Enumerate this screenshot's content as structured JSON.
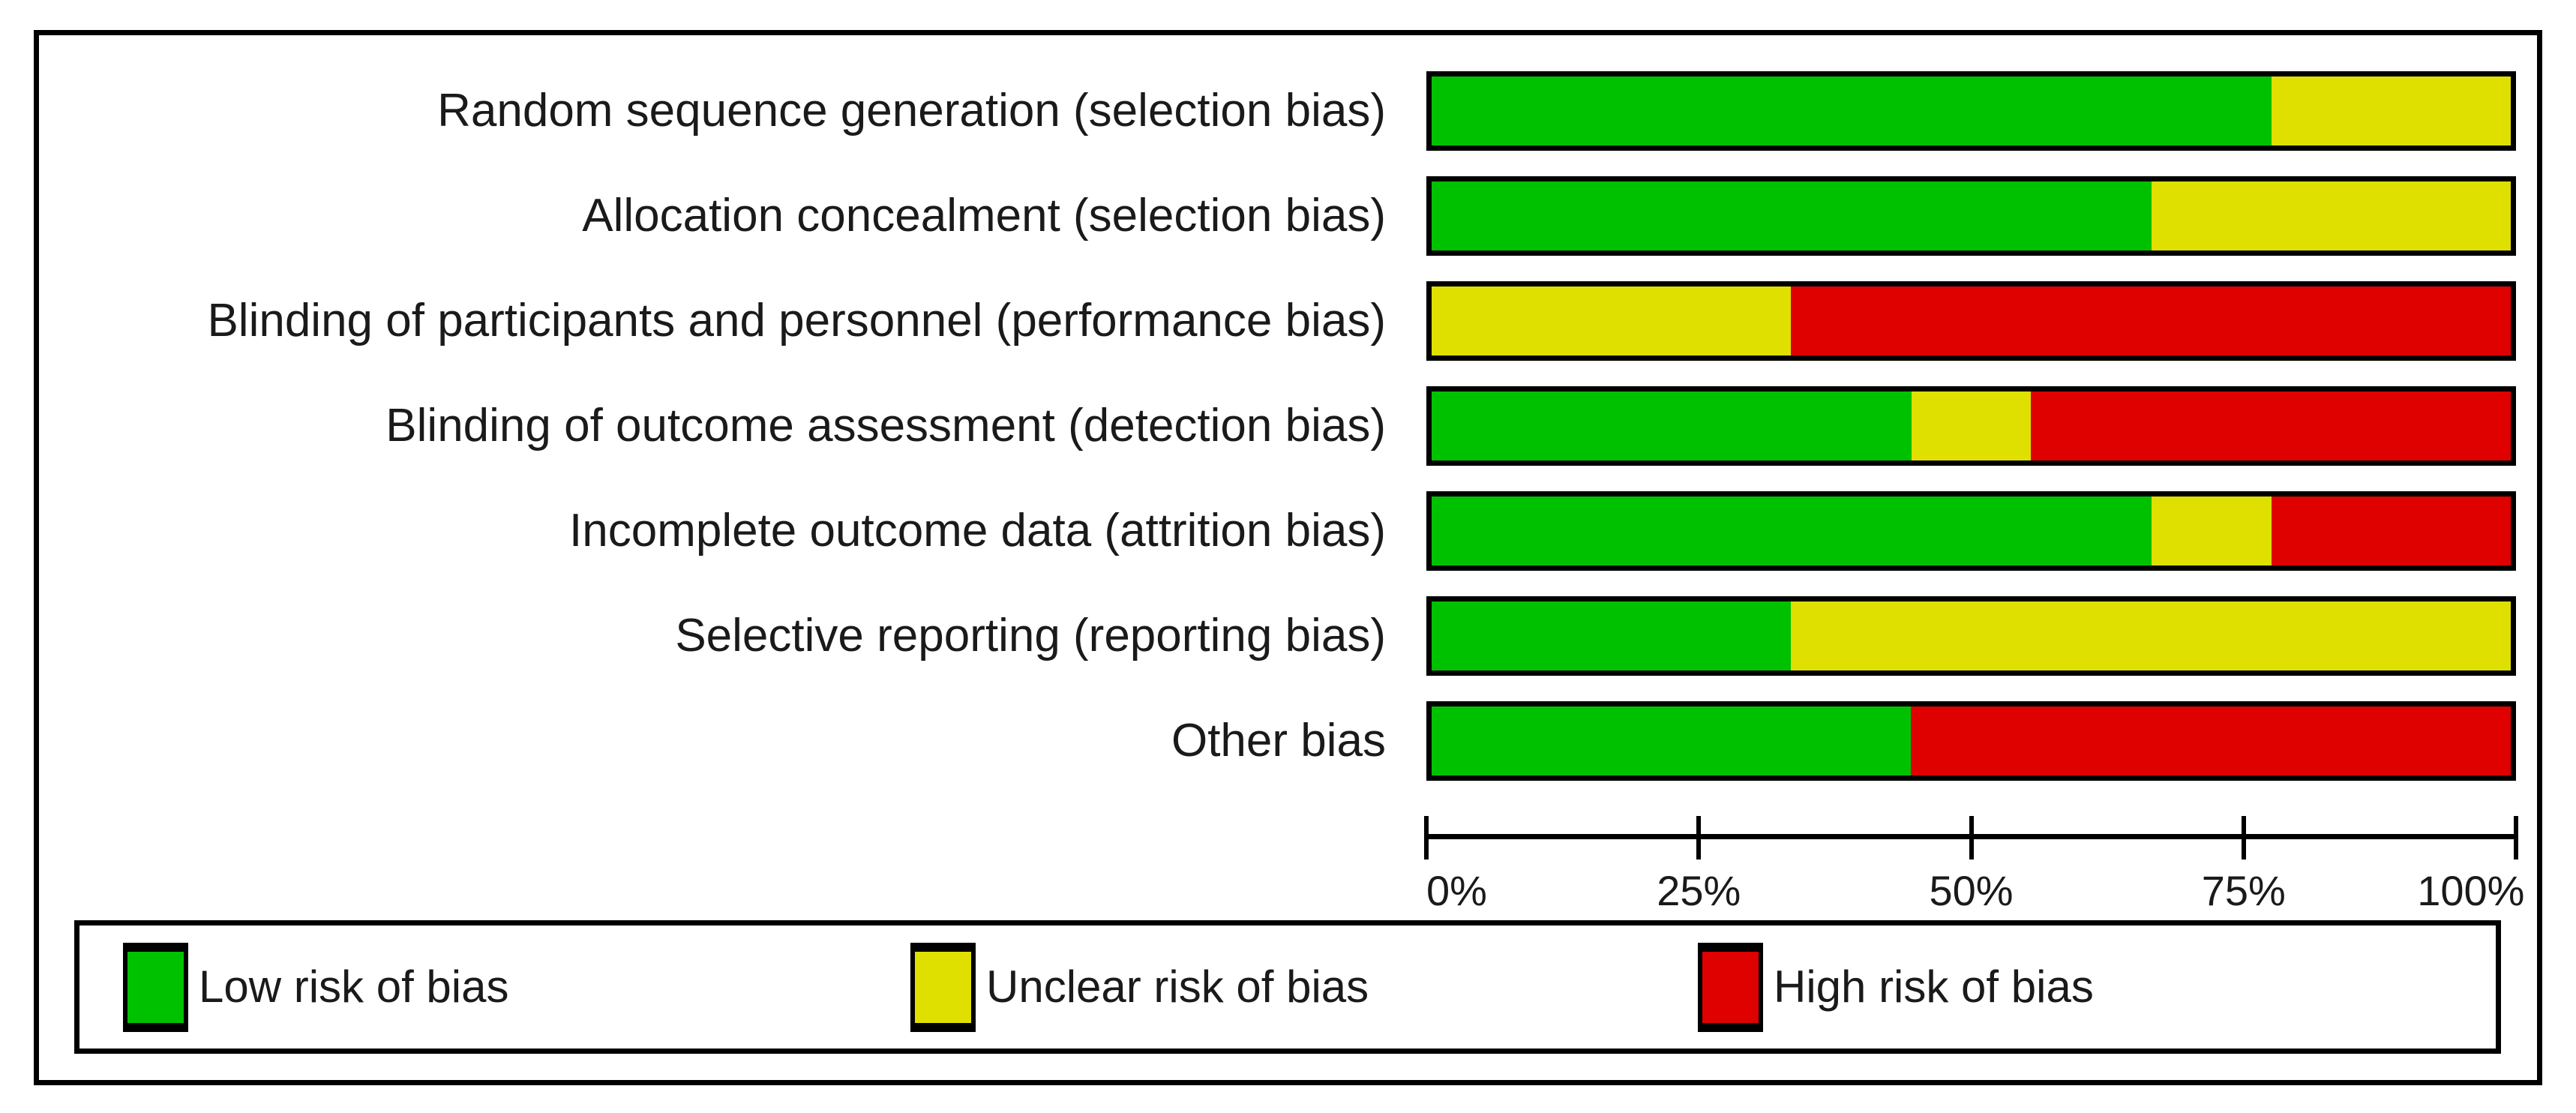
{
  "page": {
    "background": "#ffffff",
    "frame_border_color": "#000000",
    "text_color": "#1a1a1a"
  },
  "chart_data": {
    "type": "bar",
    "variant": "horizontal_stacked_percentage",
    "title": "",
    "xlabel": "",
    "ylabel": "",
    "categories": [
      "Random sequence generation (selection bias)",
      "Allocation concealment (selection bias)",
      "Blinding of participants and personnel (performance bias)",
      "Blinding of outcome assessment (detection bias)",
      "Incomplete outcome data (attrition bias)",
      "Selective reporting (reporting bias)",
      "Other bias"
    ],
    "series": [
      {
        "name": "Low risk of bias",
        "color": "#00c100",
        "values": [
          77.8,
          66.7,
          0.0,
          44.4,
          66.7,
          33.3,
          44.4
        ]
      },
      {
        "name": "Unclear risk of bias",
        "color": "#e0e000",
        "values": [
          22.2,
          33.3,
          33.3,
          11.1,
          11.1,
          66.7,
          0.0
        ]
      },
      {
        "name": "High risk of bias",
        "color": "#df0000",
        "values": [
          0.0,
          0.0,
          66.7,
          44.4,
          22.2,
          0.0,
          55.6
        ]
      }
    ],
    "x_axis": {
      "range": [
        0,
        100
      ],
      "tick_positions": [
        0,
        25,
        50,
        75,
        100
      ],
      "tick_labels": [
        "0%",
        "25%",
        "50%",
        "75%",
        "100%"
      ],
      "grid": false
    },
    "legend": {
      "position": "bottom",
      "entries": [
        {
          "label": "Low risk of bias",
          "color": "#00c100"
        },
        {
          "label": "Unclear risk of bias",
          "color": "#e0e000"
        },
        {
          "label": "High risk of bias",
          "color": "#df0000"
        }
      ]
    },
    "layout": {
      "first_bar_top": 48,
      "row_pitch": 140,
      "legend_item_offsets": [
        58,
        1108,
        2158
      ]
    }
  }
}
